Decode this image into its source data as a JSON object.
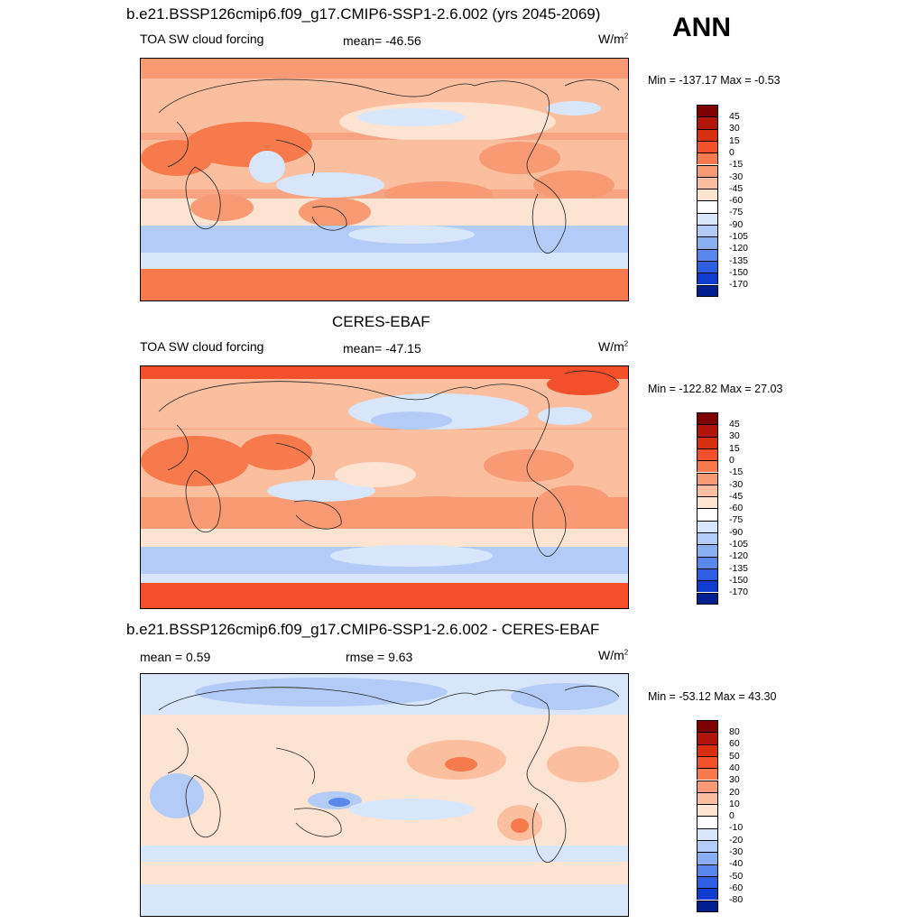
{
  "season": "ANN",
  "panels": [
    {
      "title": "b.e21.BSSP126cmip6.f09_g17.CMIP6-SSP1-2.6.002 (yrs 2045-2069)",
      "left_label": "TOA SW cloud forcing",
      "center_label": "mean= -46.56",
      "units_base": "W/m",
      "units_sup": "2",
      "minmax": "Min = -137.17 Max =  -0.53",
      "colorbar": {
        "labels": [
          "45",
          "30",
          "15",
          "0",
          "-15",
          "-30",
          "-45",
          "-60",
          "-75",
          "-90",
          "-105",
          "-120",
          "-135",
          "-150",
          "-170"
        ],
        "colors": [
          "#7f0000",
          "#b0170a",
          "#d7300f",
          "#f2502a",
          "#f67a4c",
          "#f89a73",
          "#fbbfa0",
          "#fde3d2",
          "#ffffff",
          "#d8e6fb",
          "#b3ccf7",
          "#8aaef2",
          "#5a87eb",
          "#2e5fe3",
          "#0f3bcf",
          "#00208f"
        ]
      }
    },
    {
      "title": "CERES-EBAF",
      "left_label": "TOA SW cloud forcing",
      "center_label": "mean= -47.15",
      "units_base": "W/m",
      "units_sup": "2",
      "minmax": "Min = -122.82 Max =  27.03",
      "colorbar": {
        "labels": [
          "45",
          "30",
          "15",
          "0",
          "-15",
          "-30",
          "-45",
          "-60",
          "-75",
          "-90",
          "-105",
          "-120",
          "-135",
          "-150",
          "-170"
        ],
        "colors": [
          "#7f0000",
          "#b0170a",
          "#d7300f",
          "#f2502a",
          "#f67a4c",
          "#f89a73",
          "#fbbfa0",
          "#fde3d2",
          "#ffffff",
          "#d8e6fb",
          "#b3ccf7",
          "#8aaef2",
          "#5a87eb",
          "#2e5fe3",
          "#0f3bcf",
          "#00208f"
        ]
      }
    },
    {
      "title": "b.e21.BSSP126cmip6.f09_g17.CMIP6-SSP1-2.6.002 - CERES-EBAF",
      "left_label": "mean =   0.59",
      "center_label": "rmse =    9.63",
      "units_base": "W/m",
      "units_sup": "2",
      "minmax": "Min = -53.12 Max =  43.30",
      "colorbar": {
        "labels": [
          "80",
          "60",
          "50",
          "40",
          "30",
          "20",
          "10",
          "0",
          "-10",
          "-20",
          "-30",
          "-40",
          "-50",
          "-60",
          "-80"
        ],
        "colors": [
          "#7f0000",
          "#b0170a",
          "#d7300f",
          "#f2502a",
          "#f67a4c",
          "#f89a73",
          "#fbbfa0",
          "#fde3d2",
          "#ffffff",
          "#d8e6fb",
          "#b3ccf7",
          "#8aaef2",
          "#5a87eb",
          "#2e5fe3",
          "#0f3bcf",
          "#00208f"
        ]
      }
    }
  ]
}
